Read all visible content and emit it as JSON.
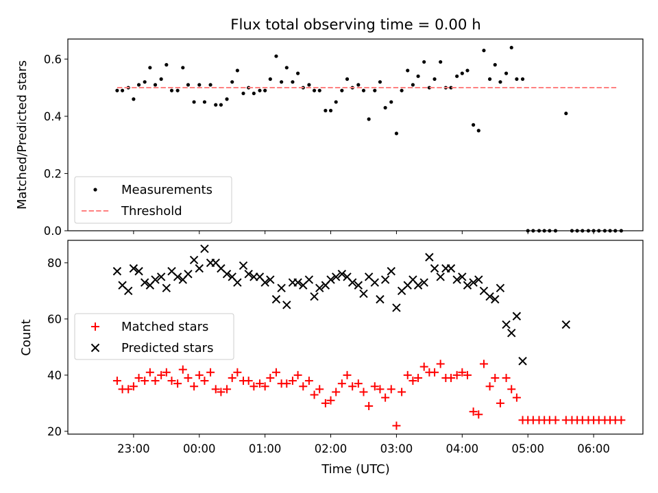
{
  "title": "Flux total observing time = 0.00 h",
  "xlabel": "Time (UTC)",
  "chart_data": [
    {
      "type": "scatter",
      "ylabel": "Matched/Predicted stars",
      "ylim": [
        0,
        0.67
      ],
      "yticks": [
        0.0,
        0.2,
        0.4,
        0.6
      ],
      "ytick_labels": [
        "0.0",
        "0.2",
        "0.4",
        "0.6"
      ],
      "xlim": [
        22.0,
        30.75
      ],
      "legend_position": "lower-left",
      "series": [
        {
          "name": "Measurements",
          "marker": "dot",
          "color": "#000000",
          "x": [
            22.75,
            22.83,
            22.92,
            23.0,
            23.08,
            23.17,
            23.25,
            23.33,
            23.42,
            23.5,
            23.58,
            23.67,
            23.75,
            23.83,
            23.92,
            24.0,
            24.08,
            24.17,
            24.25,
            24.33,
            24.42,
            24.5,
            24.58,
            24.67,
            24.75,
            24.83,
            24.92,
            25.0,
            25.08,
            25.17,
            25.25,
            25.33,
            25.42,
            25.5,
            25.58,
            25.67,
            25.75,
            25.83,
            25.92,
            26.0,
            26.08,
            26.17,
            26.25,
            26.33,
            26.42,
            26.5,
            26.58,
            26.67,
            26.75,
            26.83,
            26.92,
            27.0,
            27.08,
            27.17,
            27.25,
            27.33,
            27.42,
            27.5,
            27.58,
            27.67,
            27.75,
            27.83,
            27.92,
            28.0,
            28.08,
            28.17,
            28.25,
            28.33,
            28.42,
            28.5,
            28.58,
            28.67,
            28.75,
            28.83,
            28.92,
            29.0,
            29.08,
            29.17,
            29.25,
            29.33,
            29.42,
            29.58,
            29.67,
            29.75,
            29.83,
            29.92,
            30.0,
            30.08,
            30.17,
            30.25,
            30.33,
            30.42
          ],
          "y": [
            0.49,
            0.49,
            0.5,
            0.46,
            0.51,
            0.52,
            0.57,
            0.51,
            0.53,
            0.58,
            0.49,
            0.49,
            0.57,
            0.51,
            0.45,
            0.51,
            0.45,
            0.51,
            0.44,
            0.44,
            0.46,
            0.52,
            0.56,
            0.48,
            0.5,
            0.48,
            0.49,
            0.49,
            0.53,
            0.61,
            0.52,
            0.57,
            0.52,
            0.55,
            0.5,
            0.51,
            0.49,
            0.49,
            0.42,
            0.42,
            0.45,
            0.49,
            0.53,
            0.5,
            0.51,
            0.49,
            0.39,
            0.49,
            0.52,
            0.43,
            0.45,
            0.34,
            0.49,
            0.56,
            0.51,
            0.54,
            0.59,
            0.5,
            0.53,
            0.59,
            0.5,
            0.5,
            0.54,
            0.55,
            0.56,
            0.37,
            0.35,
            0.63,
            0.53,
            0.58,
            0.52,
            0.55,
            0.64,
            0.53,
            0.53,
            0.0,
            0.0,
            0.0,
            0.0,
            0.0,
            0.0,
            0.41,
            0.0,
            0.0,
            0.0,
            0.0,
            0.0,
            0.0,
            0.0,
            0.0,
            0.0,
            0.0
          ]
        },
        {
          "name": "Threshold",
          "marker": "dashed-line",
          "color": "#ff7f7f",
          "x": [
            22.75,
            30.37
          ],
          "y": [
            0.5,
            0.5
          ]
        }
      ]
    },
    {
      "type": "scatter",
      "ylabel": "Count",
      "ylim": [
        19,
        88
      ],
      "yticks": [
        20,
        40,
        60,
        80
      ],
      "ytick_labels": [
        "20",
        "40",
        "60",
        "80"
      ],
      "xlim": [
        22.0,
        30.75
      ],
      "xticks": [
        23,
        24,
        25,
        26,
        27,
        28,
        29,
        30
      ],
      "xtick_labels": [
        "23:00",
        "00:00",
        "01:00",
        "02:00",
        "03:00",
        "04:00",
        "05:00",
        "06:00"
      ],
      "legend_position": "middle-left",
      "series": [
        {
          "name": "Matched stars",
          "marker": "plus",
          "color": "#ff0000",
          "x": [
            22.75,
            22.83,
            22.92,
            23.0,
            23.08,
            23.17,
            23.25,
            23.33,
            23.42,
            23.5,
            23.58,
            23.67,
            23.75,
            23.83,
            23.92,
            24.0,
            24.08,
            24.17,
            24.25,
            24.33,
            24.42,
            24.5,
            24.58,
            24.67,
            24.75,
            24.83,
            24.92,
            25.0,
            25.08,
            25.17,
            25.25,
            25.33,
            25.42,
            25.5,
            25.58,
            25.67,
            25.75,
            25.83,
            25.92,
            26.0,
            26.08,
            26.17,
            26.25,
            26.33,
            26.42,
            26.5,
            26.58,
            26.67,
            26.75,
            26.83,
            26.92,
            27.0,
            27.08,
            27.17,
            27.25,
            27.33,
            27.42,
            27.5,
            27.58,
            27.67,
            27.75,
            27.83,
            27.92,
            28.0,
            28.08,
            28.17,
            28.25,
            28.33,
            28.42,
            28.5,
            28.58,
            28.67,
            28.75,
            28.83,
            28.92,
            29.0,
            29.08,
            29.17,
            29.25,
            29.33,
            29.42,
            29.58,
            29.67,
            29.75,
            29.83,
            29.92,
            30.0,
            30.08,
            30.17,
            30.25,
            30.33,
            30.42
          ],
          "y": [
            38,
            35,
            35,
            36,
            39,
            38,
            41,
            38,
            40,
            41,
            38,
            37,
            42,
            39,
            36,
            40,
            38,
            41,
            35,
            34,
            35,
            39,
            41,
            38,
            38,
            36,
            37,
            36,
            39,
            41,
            37,
            37,
            38,
            40,
            36,
            38,
            33,
            35,
            30,
            31,
            34,
            37,
            40,
            36,
            37,
            34,
            29,
            36,
            35,
            32,
            35,
            22,
            34,
            40,
            38,
            39,
            43,
            41,
            41,
            44,
            39,
            39,
            40,
            41,
            40,
            27,
            26,
            44,
            36,
            39,
            30,
            39,
            35,
            32,
            24,
            24,
            24,
            24,
            24,
            24,
            24,
            24,
            24,
            24,
            24,
            24,
            24,
            24,
            24,
            24,
            24,
            24
          ]
        },
        {
          "name": "Predicted stars",
          "marker": "x",
          "color": "#000000",
          "x": [
            22.75,
            22.83,
            22.92,
            23.0,
            23.08,
            23.17,
            23.25,
            23.33,
            23.42,
            23.5,
            23.58,
            23.67,
            23.75,
            23.83,
            23.92,
            24.0,
            24.08,
            24.17,
            24.25,
            24.33,
            24.42,
            24.5,
            24.58,
            24.67,
            24.75,
            24.83,
            24.92,
            25.0,
            25.08,
            25.17,
            25.25,
            25.33,
            25.42,
            25.5,
            25.58,
            25.67,
            25.75,
            25.83,
            25.92,
            26.0,
            26.08,
            26.17,
            26.25,
            26.33,
            26.42,
            26.5,
            26.58,
            26.67,
            26.75,
            26.83,
            26.92,
            27.0,
            27.08,
            27.17,
            27.25,
            27.33,
            27.42,
            27.5,
            27.58,
            27.67,
            27.75,
            27.83,
            27.92,
            28.0,
            28.08,
            28.17,
            28.25,
            28.33,
            28.42,
            28.5,
            28.58,
            28.67,
            28.75,
            28.83,
            28.92,
            29.58
          ],
          "y": [
            77,
            72,
            70,
            78,
            77,
            73,
            72,
            74,
            75,
            71,
            77,
            75,
            74,
            76,
            81,
            78,
            85,
            80,
            80,
            78,
            76,
            75,
            73,
            79,
            76,
            75,
            75,
            73,
            74,
            67,
            71,
            65,
            73,
            73,
            72,
            74,
            68,
            71,
            72,
            74,
            75,
            76,
            75,
            73,
            72,
            69,
            75,
            73,
            67,
            74,
            77,
            64,
            70,
            72,
            74,
            72,
            73,
            82,
            78,
            75,
            78,
            78,
            74,
            75,
            72,
            73,
            74,
            70,
            68,
            67,
            71,
            58,
            55,
            61,
            45,
            58
          ]
        }
      ]
    }
  ]
}
